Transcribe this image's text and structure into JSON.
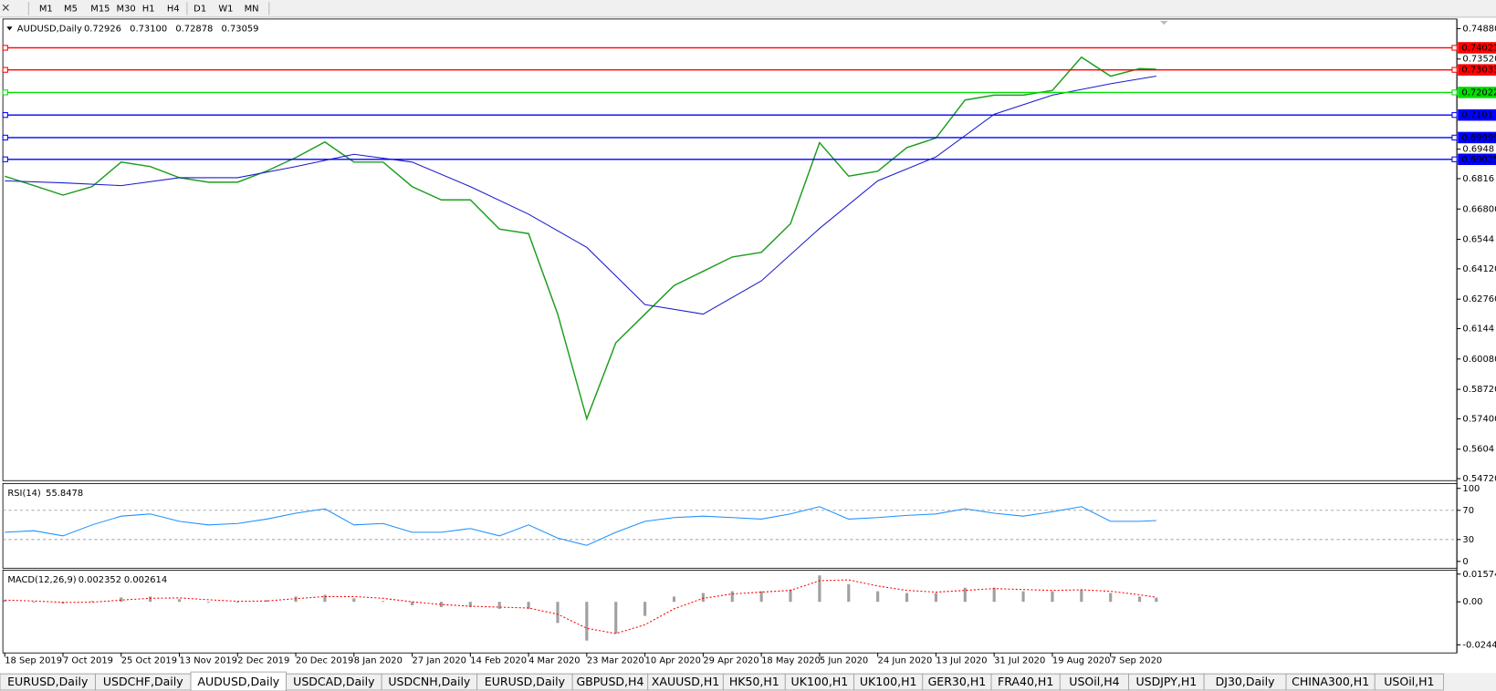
{
  "toolbar": {
    "timeframes": [
      "M1",
      "M5",
      "M15",
      "M30",
      "H1",
      "H4",
      "D1",
      "W1",
      "MN"
    ]
  },
  "chart_data": [
    {
      "type": "line",
      "title": "AUDUSD,Daily",
      "quote": [
        "0.72926",
        "0.73100",
        "0.72878",
        "0.73059"
      ],
      "xlim": [
        0,
        350
      ],
      "ylim": [
        0.5463,
        0.7531
      ],
      "x": [
        0,
        7,
        14,
        21,
        28,
        35,
        42,
        49,
        56,
        63,
        70,
        77,
        84,
        91,
        98,
        105,
        112,
        119,
        126,
        133,
        140,
        147,
        154,
        161,
        168,
        175,
        182,
        189,
        196,
        203,
        210,
        217,
        224,
        231,
        238,
        245,
        252,
        259,
        266,
        273,
        277
      ],
      "xticks": [
        {
          "value": 0,
          "label": "18 Sep 2019"
        },
        {
          "value": 14,
          "label": "7 Oct 2019"
        },
        {
          "value": 28,
          "label": "25 Oct 2019"
        },
        {
          "value": 42,
          "label": "13 Nov 2019"
        },
        {
          "value": 56,
          "label": "2 Dec 2019"
        },
        {
          "value": 70,
          "label": "20 Dec 2019"
        },
        {
          "value": 84,
          "label": "8 Jan 2020"
        },
        {
          "value": 98,
          "label": "27 Jan 2020"
        },
        {
          "value": 112,
          "label": "14 Feb 2020"
        },
        {
          "value": 126,
          "label": "4 Mar 2020"
        },
        {
          "value": 140,
          "label": "23 Mar 2020"
        },
        {
          "value": 154,
          "label": "10 Apr 2020"
        },
        {
          "value": 168,
          "label": "29 Apr 2020"
        },
        {
          "value": 182,
          "label": "18 May 2020"
        },
        {
          "value": 196,
          "label": "5 Jun 2020"
        },
        {
          "value": 210,
          "label": "24 Jun 2020"
        },
        {
          "value": 224,
          "label": "13 Jul 2020"
        },
        {
          "value": 238,
          "label": "31 Jul 2020"
        },
        {
          "value": 252,
          "label": "19 Aug 2020"
        },
        {
          "value": 266,
          "label": "7 Sep 2020"
        }
      ],
      "yticks": [
        {
          "value": 0.7488,
          "label": "0.74880"
        },
        {
          "value": 0.7352,
          "label": "0.73520"
        },
        0.6948,
        0.6816,
        {
          "value": 0.668,
          "label": "0.66800"
        },
        0.6544,
        {
          "value": 0.6412,
          "label": "0.64120"
        },
        {
          "value": 0.6276,
          "label": "0.62760"
        },
        0.6144,
        {
          "value": 0.6008,
          "label": "0.60080"
        },
        {
          "value": 0.5872,
          "label": "0.58720"
        },
        {
          "value": 0.574,
          "label": "0.57400"
        },
        0.5604,
        {
          "value": 0.5472,
          "label": "0.54720"
        }
      ],
      "series": [
        {
          "color": "#1e9e1e",
          "values": [
            0.6827,
            0.6785,
            0.6742,
            0.678,
            0.689,
            0.687,
            0.682,
            0.68,
            0.68,
            0.685,
            0.691,
            0.698,
            0.689,
            0.689,
            0.678,
            0.6721,
            0.6721,
            0.659,
            0.657,
            0.621,
            0.574,
            0.6081,
            0.6209,
            0.6337,
            0.6401,
            0.6465,
            0.6486,
            0.6614,
            0.6977,
            0.6827,
            0.6849,
            0.6955,
            0.6998,
            0.7168,
            0.719,
            0.719,
            0.7211,
            0.736,
            0.7275,
            0.7309,
            0.7306
          ]
        },
        {
          "color": "#1c1ccc",
          "x": [
            0,
            14,
            28,
            42,
            56,
            70,
            84,
            98,
            112,
            126,
            140,
            154,
            168,
            182,
            196,
            210,
            224,
            238,
            252,
            266,
            277
          ],
          "values": [
            0.6806,
            0.6797,
            0.6785,
            0.682,
            0.682,
            0.687,
            0.6925,
            0.689,
            0.678,
            0.6657,
            0.6508,
            0.6252,
            0.6209,
            0.6358,
            0.6593,
            0.6806,
            0.6913,
            0.7104,
            0.719,
            0.7241,
            0.7275
          ]
        }
      ],
      "levels": [
        {
          "value": 0.74021,
          "color": "#ff0000"
        },
        {
          "value": 0.73033,
          "color": "#ff0000"
        },
        {
          "value": 0.72022,
          "color": "#00dd00"
        },
        {
          "value": 0.7101,
          "color": "#0000ff"
        },
        {
          "value": 0.69999,
          "color": "#0000ff"
        },
        {
          "value": 0.69025,
          "color": "#0000ff"
        }
      ]
    },
    {
      "type": "line",
      "title": "RSI(14)",
      "current": [
        55.8478
      ],
      "xlim": [
        0,
        350
      ],
      "ylim": [
        -9.3,
        106.7
      ],
      "yticks": [
        100,
        70,
        30,
        0
      ],
      "levels_dashed": [
        70,
        30
      ],
      "x": [
        0,
        7,
        14,
        21,
        28,
        35,
        42,
        49,
        56,
        63,
        70,
        77,
        84,
        91,
        98,
        105,
        112,
        119,
        126,
        133,
        140,
        147,
        154,
        161,
        168,
        175,
        182,
        189,
        196,
        203,
        210,
        217,
        224,
        231,
        238,
        245,
        252,
        259,
        266,
        273,
        277
      ],
      "series": [
        {
          "color": "#1e90ff",
          "values": [
            40,
            42,
            35,
            50,
            62,
            65,
            55,
            50,
            52,
            58,
            66,
            72,
            50,
            52,
            40,
            40,
            45,
            35,
            50,
            32,
            22,
            40,
            55,
            60,
            62,
            60,
            58,
            65,
            75,
            58,
            60,
            63,
            65,
            72,
            66,
            62,
            68,
            75,
            55,
            55,
            56
          ]
        }
      ]
    },
    {
      "type": "bar",
      "title": "MACD(12,26,9)",
      "current": [
        0.002352,
        0.002614
      ],
      "xlim": [
        0,
        350
      ],
      "ylim": [
        -0.029,
        0.018
      ],
      "yticks": [
        0.015741,
        {
          "value": 0,
          "label": "0.00"
        },
        -0.024412
      ],
      "x": [
        0,
        7,
        14,
        21,
        28,
        35,
        42,
        49,
        56,
        63,
        70,
        77,
        84,
        91,
        98,
        105,
        112,
        119,
        126,
        133,
        140,
        147,
        154,
        161,
        168,
        175,
        182,
        189,
        196,
        203,
        210,
        217,
        224,
        231,
        238,
        245,
        252,
        259,
        266,
        273,
        277
      ],
      "series": [
        {
          "style": "bar",
          "color": "#a0a0a0",
          "values": [
            0.001,
            -0.0005,
            -0.001,
            0.0005,
            0.0025,
            0.003,
            0.0015,
            -0.0005,
            -0.0005,
            0.001,
            0.003,
            0.004,
            0.002,
            0.0005,
            -0.002,
            -0.003,
            -0.003,
            -0.004,
            -0.004,
            -0.012,
            -0.022,
            -0.018,
            -0.008,
            0.003,
            0.005,
            0.006,
            0.006,
            0.007,
            0.015,
            0.01,
            0.006,
            0.005,
            0.005,
            0.008,
            0.008,
            0.006,
            0.006,
            0.007,
            0.005,
            0.003,
            0.0024
          ]
        },
        {
          "style": "dashed",
          "color": "#ff0000",
          "values": [
            0.001,
            0.0005,
            -0.0003,
            -0.0002,
            0.001,
            0.002,
            0.0022,
            0.0012,
            0.0003,
            0.0005,
            0.0018,
            0.003,
            0.003,
            0.002,
            0,
            -0.0015,
            -0.0025,
            -0.003,
            -0.0035,
            -0.007,
            -0.015,
            -0.018,
            -0.013,
            -0.004,
            0.002,
            0.0045,
            0.0055,
            0.0065,
            0.012,
            0.0125,
            0.009,
            0.0065,
            0.0055,
            0.0065,
            0.0075,
            0.007,
            0.0065,
            0.0068,
            0.006,
            0.004,
            0.0026
          ]
        }
      ]
    }
  ],
  "tabs": {
    "items": [
      "EURUSD,Daily",
      "USDCHF,Daily",
      "AUDUSD,Daily",
      "USDCAD,Daily",
      "USDCNH,Daily",
      "EURUSD,Daily",
      "GBPUSD,H4",
      "XAUUSD,H1",
      "HK50,H1",
      "UK100,H1",
      "UK100,H1",
      "GER30,H1",
      "FRA40,H1",
      "USOil,H4",
      "USDJPY,H1",
      "DJ30,Daily",
      "CHINA300,H1",
      "USOil,H1"
    ],
    "active": 2
  }
}
